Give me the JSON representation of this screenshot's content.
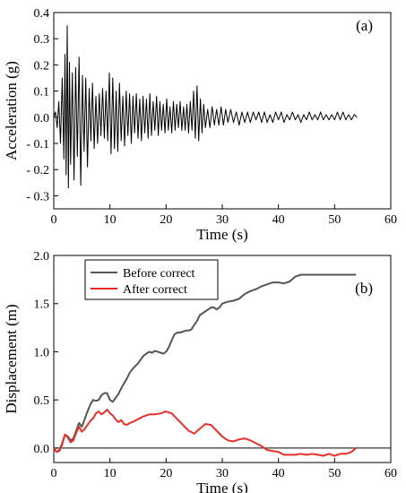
{
  "chart_data": [
    {
      "type": "line",
      "panel_label": "(a)",
      "xlabel": "Time (s)",
      "ylabel": "Acceleration (g)",
      "xlim": [
        0,
        60
      ],
      "ylim": [
        -0.35,
        0.4
      ],
      "x_ticks": [
        0,
        10,
        20,
        30,
        40,
        50,
        60
      ],
      "x_tick_labels": [
        "0",
        "10",
        "20",
        "30",
        "40",
        "50",
        "60"
      ],
      "y_ticks": [
        0.4,
        0.3,
        0.2,
        0.1,
        0.0,
        -0.1,
        -0.2,
        -0.3
      ],
      "y_tick_labels": [
        "0.4",
        "0.3",
        "0.2",
        "0.1",
        "0.0",
        "- 0.1",
        "- 0.2",
        "- 0.3"
      ],
      "series": [
        {
          "color": "#000000",
          "x": [
            0,
            0.3,
            0.6,
            0.9,
            1.2,
            1.5,
            1.8,
            2.0,
            2.2,
            2.4,
            2.6,
            2.8,
            3.0,
            3.3,
            3.6,
            3.9,
            4.2,
            4.5,
            4.8,
            5.1,
            5.4,
            5.7,
            6.0,
            6.3,
            6.6,
            6.9,
            7.2,
            7.5,
            7.8,
            8.1,
            8.4,
            8.7,
            9.0,
            9.3,
            9.6,
            9.9,
            10.2,
            10.5,
            10.8,
            11.1,
            11.4,
            11.7,
            12.0,
            12.3,
            12.6,
            12.9,
            13.2,
            13.5,
            13.8,
            14.1,
            14.4,
            14.7,
            15.0,
            15.3,
            15.6,
            15.9,
            16.2,
            16.5,
            16.8,
            17.1,
            17.4,
            17.7,
            18.0,
            18.3,
            18.6,
            18.9,
            19.2,
            19.5,
            19.8,
            20.1,
            20.4,
            20.7,
            21.0,
            21.3,
            21.6,
            21.9,
            22.2,
            22.5,
            22.8,
            23.1,
            23.4,
            23.7,
            24.0,
            24.3,
            24.6,
            24.9,
            25.2,
            25.5,
            25.8,
            26.1,
            26.4,
            26.7,
            27.0,
            27.4,
            27.8,
            28.2,
            28.6,
            29.0,
            29.4,
            29.8,
            30.2,
            30.6,
            31.0,
            31.5,
            32.0,
            32.5,
            33.0,
            33.5,
            34.0,
            34.5,
            35.0,
            35.5,
            36.0,
            36.5,
            37.0,
            37.5,
            38.0,
            38.5,
            39.0,
            39.5,
            40.0,
            40.5,
            41.0,
            41.5,
            42.0,
            42.5,
            43.0,
            43.5,
            44.0,
            44.5,
            45.0,
            45.5,
            46.0,
            46.5,
            47.0,
            47.5,
            48.0,
            48.5,
            49.0,
            49.5,
            50.0,
            50.5,
            51.0,
            51.5,
            52.0,
            52.5,
            53.0,
            53.5,
            54.0
          ],
          "values": [
            0.0,
            0.02,
            -0.04,
            0.06,
            -0.1,
            0.15,
            -0.16,
            0.24,
            -0.22,
            0.35,
            -0.27,
            0.21,
            -0.18,
            0.17,
            -0.24,
            0.19,
            -0.15,
            0.23,
            -0.26,
            0.16,
            -0.13,
            0.15,
            -0.19,
            0.11,
            -0.09,
            0.13,
            -0.12,
            0.08,
            -0.1,
            0.09,
            -0.07,
            0.11,
            -0.08,
            0.1,
            -0.09,
            0.17,
            -0.14,
            0.15,
            -0.12,
            0.1,
            -0.13,
            0.13,
            -0.09,
            0.08,
            -0.11,
            0.1,
            -0.07,
            0.09,
            -0.1,
            0.08,
            -0.06,
            0.09,
            -0.08,
            0.07,
            -0.09,
            0.08,
            -0.06,
            0.07,
            -0.08,
            0.09,
            -0.07,
            0.06,
            -0.05,
            0.08,
            -0.07,
            0.06,
            -0.05,
            0.05,
            -0.06,
            0.07,
            -0.05,
            0.04,
            -0.06,
            0.06,
            -0.05,
            0.05,
            -0.04,
            0.06,
            -0.05,
            0.04,
            -0.05,
            0.05,
            -0.06,
            0.06,
            -0.05,
            0.1,
            -0.08,
            0.12,
            -0.09,
            0.07,
            -0.06,
            0.05,
            -0.04,
            0.03,
            -0.04,
            0.04,
            -0.03,
            0.03,
            -0.03,
            0.04,
            -0.03,
            0.03,
            -0.02,
            0.03,
            -0.02,
            0.02,
            -0.03,
            0.02,
            -0.02,
            0.02,
            -0.02,
            0.02,
            -0.01,
            0.02,
            -0.02,
            0.02,
            -0.02,
            0.01,
            -0.02,
            0.02,
            -0.01,
            0.02,
            -0.02,
            0.01,
            -0.01,
            0.02,
            -0.01,
            0.01,
            -0.02,
            0.01,
            -0.01,
            0.02,
            -0.01,
            0.01,
            -0.01,
            0.02,
            -0.01,
            0.01,
            -0.01,
            0.01,
            -0.01,
            0.02,
            -0.01,
            0.02,
            -0.01,
            0.01,
            -0.01,
            0.01,
            0.0
          ]
        }
      ]
    },
    {
      "type": "line",
      "panel_label": "(b)",
      "xlabel": "Time (s)",
      "ylabel": "Displacement (m)",
      "xlim": [
        0,
        60
      ],
      "ylim": [
        -0.15,
        2.0
      ],
      "x_ticks": [
        0,
        10,
        20,
        30,
        40,
        50,
        60
      ],
      "x_tick_labels": [
        "0",
        "10",
        "20",
        "30",
        "40",
        "50",
        "60"
      ],
      "y_ticks": [
        2.0,
        1.5,
        1.0,
        0.5,
        0.0
      ],
      "y_tick_labels": [
        "2.0",
        "1.5",
        "1.0",
        "0.5",
        "0.0"
      ],
      "zero_line": true,
      "legend_position": "top-left",
      "series": [
        {
          "name": "Before correct",
          "color": "#555555",
          "x": [
            0,
            0.5,
            1.0,
            1.5,
            2.0,
            2.5,
            3.0,
            3.5,
            4.0,
            4.5,
            5.0,
            5.5,
            6.0,
            6.5,
            7.0,
            7.5,
            8.0,
            8.5,
            9.0,
            9.5,
            10.0,
            10.5,
            11.0,
            11.5,
            12.0,
            12.5,
            13.0,
            13.5,
            14.0,
            14.5,
            15.0,
            15.5,
            16.0,
            16.5,
            17.0,
            17.5,
            18.0,
            18.5,
            19.0,
            19.5,
            20.0,
            20.5,
            21.0,
            21.5,
            22.0,
            22.5,
            23.0,
            23.5,
            24.0,
            24.5,
            25.0,
            25.5,
            26.0,
            26.5,
            27.0,
            27.5,
            28.0,
            28.5,
            29.0,
            29.5,
            30.0,
            31.0,
            32.0,
            33.0,
            34.0,
            35.0,
            36.0,
            37.0,
            38.0,
            39.0,
            40.0,
            41.0,
            42.0,
            43.0,
            44.0,
            45.0,
            46.0,
            47.0,
            48.0,
            49.0,
            50.0,
            51.0,
            52.0,
            53.0,
            53.8
          ],
          "values": [
            0.0,
            -0.04,
            -0.02,
            0.05,
            0.14,
            0.12,
            0.08,
            0.1,
            0.18,
            0.26,
            0.22,
            0.3,
            0.38,
            0.45,
            0.5,
            0.49,
            0.5,
            0.55,
            0.57,
            0.57,
            0.5,
            0.48,
            0.52,
            0.56,
            0.62,
            0.67,
            0.72,
            0.78,
            0.82,
            0.85,
            0.88,
            0.92,
            0.96,
            0.98,
            1.0,
            0.99,
            1.01,
            1.0,
            0.99,
            0.98,
            1.0,
            1.05,
            1.12,
            1.18,
            1.2,
            1.2,
            1.21,
            1.22,
            1.22,
            1.23,
            1.28,
            1.32,
            1.38,
            1.4,
            1.42,
            1.44,
            1.46,
            1.46,
            1.44,
            1.46,
            1.5,
            1.52,
            1.53,
            1.55,
            1.6,
            1.63,
            1.65,
            1.68,
            1.7,
            1.72,
            1.72,
            1.71,
            1.73,
            1.78,
            1.8,
            1.8,
            1.8,
            1.8,
            1.8,
            1.8,
            1.8,
            1.8,
            1.8,
            1.8,
            1.8
          ]
        },
        {
          "name": "After correct",
          "color": "#e8302a",
          "x": [
            0,
            0.5,
            1.0,
            1.5,
            2.0,
            2.5,
            3.0,
            3.5,
            4.0,
            4.5,
            5.0,
            5.5,
            6.0,
            6.5,
            7.0,
            7.5,
            8.0,
            8.5,
            9.0,
            9.5,
            10.0,
            10.5,
            11.0,
            11.5,
            12.0,
            12.5,
            13.0,
            13.5,
            14.0,
            15.0,
            16.0,
            17.0,
            18.0,
            19.0,
            20.0,
            21.0,
            22.0,
            23.0,
            24.0,
            25.0,
            26.0,
            27.0,
            28.0,
            29.0,
            30.0,
            31.0,
            32.0,
            33.0,
            34.0,
            35.0,
            36.0,
            37.0,
            38.0,
            39.0,
            40.0,
            41.0,
            42.0,
            43.0,
            44.0,
            45.0,
            46.0,
            47.0,
            48.0,
            49.0,
            50.0,
            51.0,
            52.0,
            53.0,
            53.8
          ],
          "values": [
            0.0,
            -0.04,
            -0.03,
            0.04,
            0.14,
            0.11,
            0.06,
            0.08,
            0.16,
            0.22,
            0.17,
            0.2,
            0.24,
            0.28,
            0.31,
            0.36,
            0.38,
            0.35,
            0.37,
            0.4,
            0.36,
            0.34,
            0.3,
            0.27,
            0.29,
            0.25,
            0.24,
            0.26,
            0.27,
            0.3,
            0.33,
            0.35,
            0.35,
            0.36,
            0.38,
            0.36,
            0.3,
            0.24,
            0.18,
            0.15,
            0.2,
            0.25,
            0.24,
            0.18,
            0.12,
            0.08,
            0.07,
            0.09,
            0.1,
            0.08,
            0.05,
            0.02,
            -0.02,
            -0.03,
            -0.04,
            -0.07,
            -0.07,
            -0.07,
            -0.06,
            -0.07,
            -0.06,
            -0.07,
            -0.08,
            -0.06,
            -0.08,
            -0.06,
            -0.06,
            -0.04,
            0.0
          ]
        }
      ]
    }
  ]
}
